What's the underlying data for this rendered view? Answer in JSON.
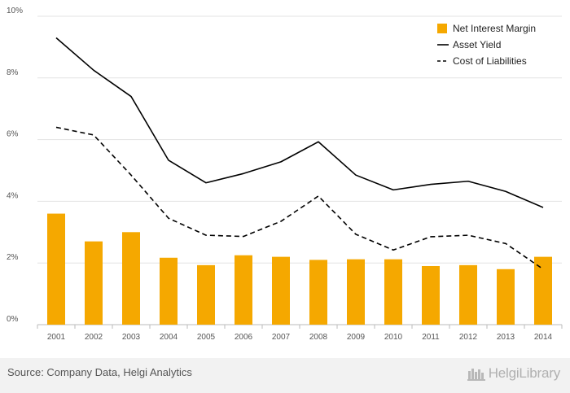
{
  "chart_data": {
    "type": "bar",
    "categories": [
      "2001",
      "2002",
      "2003",
      "2004",
      "2005",
      "2006",
      "2007",
      "2008",
      "2009",
      "2010",
      "2011",
      "2012",
      "2013",
      "2014"
    ],
    "series": [
      {
        "name": "Net Interest Margin",
        "kind": "bar",
        "style": "solid",
        "color": "#f5a800",
        "values": [
          3.6,
          2.7,
          3.0,
          2.17,
          1.93,
          2.25,
          2.2,
          2.1,
          2.12,
          2.12,
          1.9,
          1.93,
          1.8,
          2.2
        ]
      },
      {
        "name": "Asset Yield",
        "kind": "line",
        "style": "solid",
        "color": "#000000",
        "values": [
          9.3,
          8.25,
          7.4,
          5.33,
          4.6,
          4.9,
          5.28,
          5.93,
          4.85,
          4.37,
          4.55,
          4.65,
          4.32,
          3.8
        ]
      },
      {
        "name": "Cost of Liabilities",
        "kind": "line",
        "style": "dashed",
        "color": "#000000",
        "values": [
          6.4,
          6.15,
          4.85,
          3.45,
          2.9,
          2.86,
          3.35,
          4.17,
          2.93,
          2.42,
          2.85,
          2.9,
          2.63,
          1.8
        ]
      }
    ],
    "y_ticks": [
      "0%",
      "2%",
      "4%",
      "6%",
      "8%",
      "10%"
    ],
    "ylim": [
      0,
      10
    ],
    "grid": true,
    "legend_position": "top-right"
  },
  "footer": {
    "source": "Source: Company Data, Helgi Analytics",
    "brand": "HelgiLibrary"
  }
}
